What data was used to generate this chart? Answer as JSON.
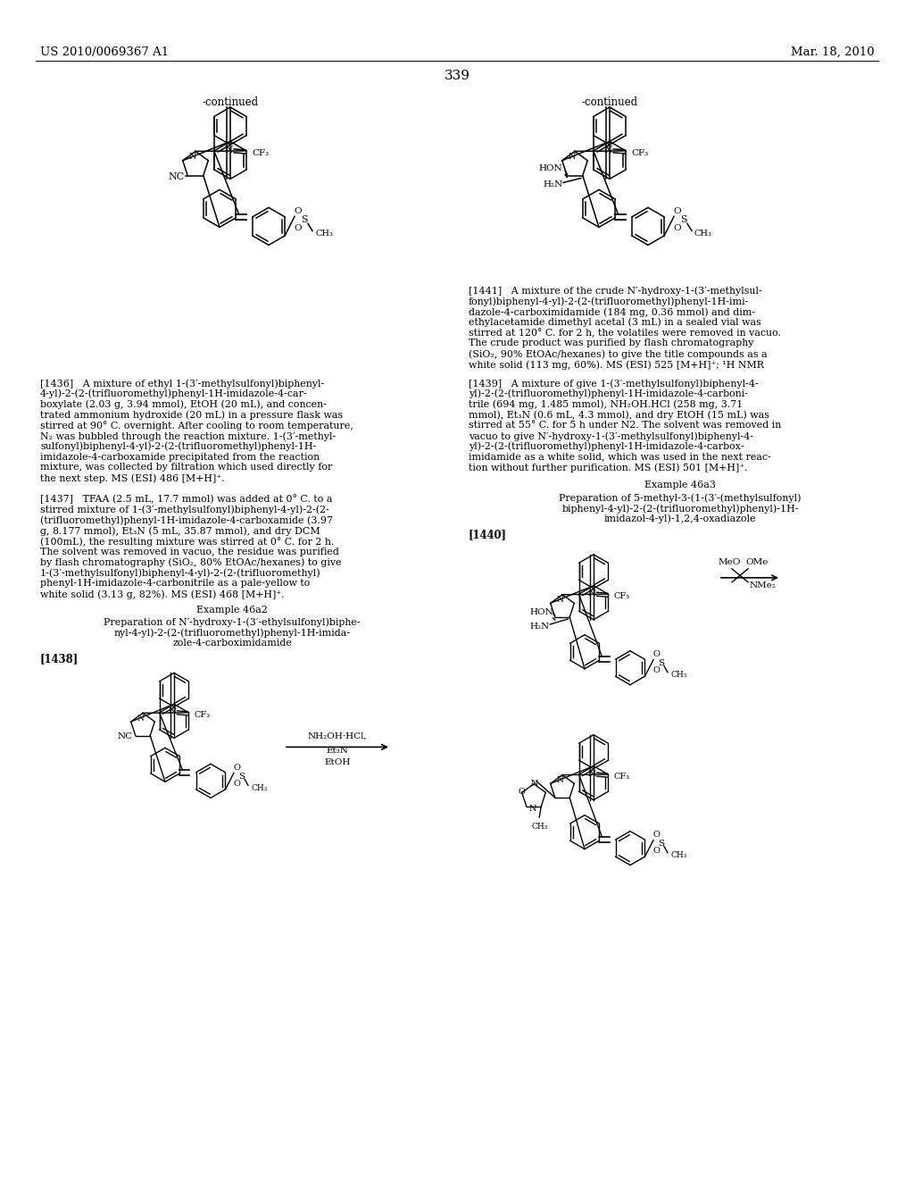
{
  "bg": "#ffffff",
  "header_left": "US 2010/0069367 A1",
  "header_right": "Mar. 18, 2010",
  "page_num": "339",
  "continued": "-continued",
  "left_col_lines": [
    "[1436]   A mixture of ethyl 1-(3′-methylsulfonyl)biphenyl-",
    "4-yl)-2-(2-(trifluoromethyl)phenyl-1H-imidazole-4-car-",
    "boxylate (2.03 g, 3.94 mmol), EtOH (20 mL), and concen-",
    "trated ammonium hydroxide (20 mL) in a pressure flask was",
    "stirred at 90° C. overnight. After cooling to room temperature,",
    "N₂ was bubbled through the reaction mixture. 1-(3′-methyl-",
    "sulfonyl)biphenyl-4-yl)-2-(2-(trifluoromethyl)phenyl-1H-",
    "imidazole-4-carboxamide precipitated from the reaction",
    "mixture, was collected by filtration which used directly for",
    "the next step. MS (ESI) 486 [M+H]⁺.",
    "",
    "[1437]   TFAA (2.5 mL, 17.7 mmol) was added at 0° C. to a",
    "stirred mixture of 1-(3′-methylsulfonyl)biphenyl-4-yl)-2-(2-",
    "(trifluoromethyl)phenyl-1H-imidazole-4-carboxamide (3.97",
    "g, 8.177 mmol), Et₃N (5 mL, 35.87 mmol), and dry DCM",
    "(100mL), the resulting mixture was stirred at 0° C. for 2 h.",
    "The solvent was removed in vacuo, the residue was purified",
    "by flash chromatography (SiO₂, 80% EtOAc/hexanes) to give",
    "1-(3′-methylsulfonyl)biphenyl-4-yl)-2-(2-(trifluoromethyl)",
    "phenyl-1H-imidazole-4-carbonitrile as a pale-yellow to",
    "white solid (3.13 g, 82%). MS (ESI) 468 [M+H]⁺."
  ],
  "ex46a2_title": "Example 46a2",
  "ex46a2_prep1": "Preparation of N′-hydroxy-1-(3′-ethylsulfonyl)biphe-",
  "ex46a2_prep2": "nyl-4-yl)-2-(2-(trifluoromethyl)phenyl-1H-imida-",
  "ex46a2_prep3": "zole-4-carboximidamide",
  "tag1438": "[1438]",
  "right_col_lines": [
    "[1439]   A mixture of give 1-(3′-methylsulfonyl)biphenyl-4-",
    "yl)-2-(2-(trifluoromethyl)phenyl-1H-imidazole-4-carboni-",
    "trile (694 mg, 1.485 mmol), NH₂OH.HCl (258 mg, 3.71",
    "mmol), Et₃N (0.6 mL, 4.3 mmol), and dry EtOH (15 mL) was",
    "stirred at 55° C. for 5 h under N2. The solvent was removed in",
    "vacuo to give N′-hydroxy-1-(3′-methylsulfonyl)biphenyl-4-",
    "yl)-2-(2-(trifluoromethyl)phenyl-1H-imidazole-4-carbox-",
    "imidamide as a white solid, which was used in the next reac-",
    "tion without further purification. MS (ESI) 501 [M+H]⁺."
  ],
  "ex46a3_title": "Example 46a3",
  "ex46a3_prep1": "Preparation of 5-methyl-3-(1-(3′-(methylsulfonyl)",
  "ex46a3_prep2": "biphenyl-4-yl)-2-(2-(trifluoromethyl)phenyl)-1H-",
  "ex46a3_prep3": "imidazol-4-yl)-1,2,4-oxadiazole",
  "tag1440": "[1440]",
  "tag1441": "[1441]",
  "p1441_lines": [
    "[1441]   A mixture of the crude N′-hydroxy-1-(3′-methylsul-",
    "fonyl)biphenyl-4-yl)-2-(2-(trifluoromethyl)phenyl-1H-imi-",
    "dazole-4-carboximidamide (184 mg, 0.36 mmol) and dim-",
    "ethylacetamide dimethyl acetal (3 mL) in a sealed vial was",
    "stirred at 120° C. for 2 h, the volatiles were removed in vacuo.",
    "The crude product was purified by flash chromatography",
    "(SiO₂, 90% EtOAc/hexanes) to give the title compounds as a",
    "white solid (113 mg, 60%). MS (ESI) 525 [M+H]⁺; ¹H NMR"
  ]
}
